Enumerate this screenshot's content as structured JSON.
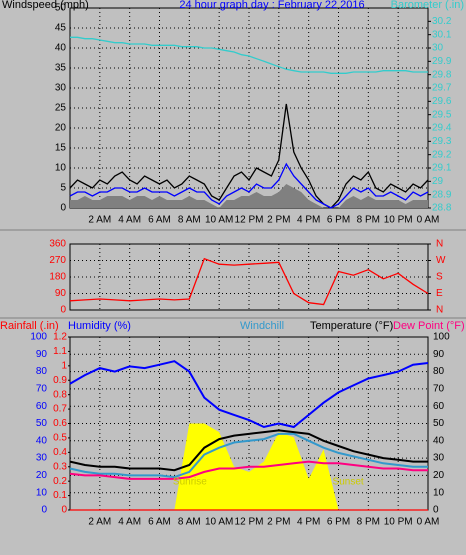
{
  "chart_data": [
    {
      "type": "line",
      "title": "24 hour graph day : February 22 2016",
      "y_label": "Windspeed (mph)",
      "y2_label": "Barometer (.in)",
      "xlim": [
        0,
        24
      ],
      "xticks": [
        {
          "value": 2,
          "label": "2 AM"
        },
        {
          "value": 4,
          "label": "4 AM"
        },
        {
          "value": 6,
          "label": "6 AM"
        },
        {
          "value": 8,
          "label": "8 AM"
        },
        {
          "value": 10,
          "label": "10 AM"
        },
        {
          "value": 12,
          "label": "12 PM"
        },
        {
          "value": 14,
          "label": "2 PM"
        },
        {
          "value": 16,
          "label": "4 PM"
        },
        {
          "value": 18,
          "label": "6 PM"
        },
        {
          "value": 20,
          "label": "8 PM"
        },
        {
          "value": 22,
          "label": "10 PM"
        },
        {
          "value": 24,
          "label": "0 AM"
        }
      ],
      "ylim": [
        0,
        50
      ],
      "yticks": [
        0,
        5,
        10,
        15,
        20,
        25,
        30,
        35,
        40,
        45,
        50
      ],
      "y_color": "#000000",
      "y2lim": [
        28.8,
        30.3
      ],
      "y2ticks": [
        28.8,
        28.9,
        29,
        29.1,
        29.2,
        29.3,
        29.4,
        29.5,
        29.6,
        29.7,
        29.8,
        29.9,
        30,
        30.1,
        30.2
      ],
      "y2_color": "#33cccc",
      "y2_side": "right",
      "grid": true,
      "x": [
        0,
        0.5,
        1,
        1.5,
        2,
        2.5,
        3,
        3.5,
        4,
        4.5,
        5,
        5.5,
        6,
        6.5,
        7,
        7.5,
        8,
        8.5,
        9,
        9.5,
        10,
        10.5,
        11,
        11.5,
        12,
        12.5,
        13,
        13.5,
        14,
        14.5,
        15,
        15.5,
        16,
        16.5,
        17,
        17.5,
        18,
        18.5,
        19,
        19.5,
        20,
        20.5,
        21,
        21.5,
        22,
        22.5,
        23,
        23.5,
        24
      ],
      "series": [
        {
          "type": "area",
          "color": "#808080",
          "values": [
            2,
            2,
            3,
            2,
            2,
            3,
            3,
            3,
            2,
            3,
            3,
            2,
            3,
            2,
            2,
            2,
            3,
            2,
            2,
            1,
            0,
            2,
            2,
            3,
            3,
            4,
            3,
            3,
            4,
            6,
            5,
            4,
            2,
            1,
            0,
            0,
            0,
            2,
            3,
            2,
            3,
            2,
            2,
            2,
            2,
            1,
            2,
            2,
            2
          ]
        },
        {
          "name": "Windspeed (mph)",
          "type": "line",
          "color": "#000000",
          "values": [
            5,
            7,
            6,
            5,
            7,
            6,
            8,
            9,
            7,
            6,
            8,
            7,
            6,
            7,
            5,
            6,
            8,
            7,
            6,
            3,
            2,
            5,
            8,
            9,
            7,
            10,
            9,
            8,
            12,
            26,
            14,
            10,
            7,
            3,
            1,
            0,
            2,
            6,
            8,
            7,
            9,
            5,
            4,
            6,
            5,
            4,
            6,
            5,
            7
          ]
        },
        {
          "type": "line",
          "color": "#0000ff",
          "values": [
            3,
            4,
            4,
            3,
            4,
            4,
            5,
            5,
            4,
            4,
            5,
            4,
            4,
            4,
            3,
            4,
            5,
            4,
            4,
            2,
            1,
            3,
            4,
            5,
            4,
            6,
            5,
            5,
            7,
            11,
            8,
            6,
            4,
            2,
            1,
            0,
            1,
            3,
            5,
            4,
            5,
            3,
            3,
            4,
            3,
            2,
            4,
            3,
            4
          ]
        },
        {
          "name": "Barometer (.in)",
          "type": "line",
          "axis": "y2",
          "color": "#33cccc",
          "values": [
            30.08,
            30.08,
            30.07,
            30.07,
            30.06,
            30.05,
            30.04,
            30.04,
            30.03,
            30.03,
            30.03,
            30.02,
            30.02,
            30.02,
            30.02,
            30.01,
            30.01,
            30.01,
            30.0,
            30.0,
            29.99,
            29.98,
            29.97,
            29.95,
            29.94,
            29.92,
            29.9,
            29.88,
            29.86,
            29.84,
            29.83,
            29.82,
            29.82,
            29.82,
            29.82,
            29.81,
            29.81,
            29.81,
            29.82,
            29.82,
            29.82,
            29.82,
            29.83,
            29.83,
            29.83,
            29.83,
            29.82,
            29.82,
            29.82
          ]
        }
      ]
    },
    {
      "type": "line",
      "xlim": [
        0,
        24
      ],
      "xticks": [
        2,
        4,
        6,
        8,
        10,
        12,
        14,
        16,
        18,
        20,
        22,
        24
      ],
      "xtick_labels": false,
      "ylim": [
        0,
        360
      ],
      "yticks": [
        0,
        90,
        180,
        270,
        360
      ],
      "y_color": "#ff0000",
      "y2lim": [
        0,
        360
      ],
      "y2ticks": [
        {
          "value": 0,
          "label": "N"
        },
        {
          "value": 90,
          "label": "E"
        },
        {
          "value": 180,
          "label": "S"
        },
        {
          "value": 270,
          "label": "W"
        },
        {
          "value": 360,
          "label": "N"
        }
      ],
      "y2_color": "#ff0000",
      "y2_side": "right",
      "grid": true,
      "x": [
        0,
        1,
        2,
        3,
        4,
        5,
        6,
        7,
        8,
        9,
        10,
        11,
        12,
        13,
        14,
        15,
        16,
        17,
        18,
        19,
        20,
        21,
        22,
        23,
        24
      ],
      "series": [
        {
          "type": "line",
          "color": "#ff0000",
          "values": [
            50,
            55,
            60,
            55,
            50,
            55,
            60,
            55,
            60,
            280,
            250,
            245,
            250,
            255,
            260,
            90,
            40,
            30,
            210,
            190,
            220,
            170,
            200,
            140,
            90
          ]
        }
      ]
    },
    {
      "type": "line",
      "headers": [
        {
          "text": "Rainfall (.in)",
          "color": "#ff0000"
        },
        {
          "text": "Humidity (%)",
          "color": "#0000ff"
        },
        {
          "text": "Windchill",
          "color": "#3399cc"
        },
        {
          "text": "Temperature (°F)",
          "color": "#000000"
        },
        {
          "text": "Dew Point (°F)",
          "color": "#ff0080"
        }
      ],
      "xlim": [
        0,
        24
      ],
      "xticks": [
        {
          "value": 2,
          "label": "2 AM"
        },
        {
          "value": 4,
          "label": "4 AM"
        },
        {
          "value": 6,
          "label": "6 AM"
        },
        {
          "value": 8,
          "label": "8 AM"
        },
        {
          "value": 10,
          "label": "10 AM"
        },
        {
          "value": 12,
          "label": "12 PM"
        },
        {
          "value": 14,
          "label": "2 PM"
        },
        {
          "value": 16,
          "label": "4 PM"
        },
        {
          "value": 18,
          "label": "6 PM"
        },
        {
          "value": 20,
          "label": "8 PM"
        },
        {
          "value": 22,
          "label": "10 PM"
        },
        {
          "value": 24,
          "label": "0 AM"
        }
      ],
      "ylim": [
        0,
        100
      ],
      "yticks": [
        0,
        10,
        20,
        30,
        40,
        50,
        60,
        70,
        80,
        90,
        100
      ],
      "y_color": "#0000ff",
      "y_right_color": "#000000",
      "y2lim": [
        0,
        1.2
      ],
      "y2ticks": [
        0,
        0.1,
        0.2,
        0.3,
        0.4,
        0.5,
        0.6,
        0.7,
        0.8,
        0.9,
        1,
        1.1,
        1.2
      ],
      "y2_color": "#ff0000",
      "y2_side": "left",
      "grid": true,
      "x": [
        0,
        1,
        2,
        3,
        4,
        5,
        6,
        7,
        8,
        9,
        10,
        11,
        12,
        13,
        14,
        15,
        16,
        17,
        18,
        19,
        20,
        21,
        22,
        23,
        24
      ],
      "series": [
        {
          "type": "area",
          "color": "#ffff00",
          "values": [
            0,
            0,
            0,
            0,
            0,
            0,
            0,
            0,
            50,
            50,
            45,
            25,
            22,
            28,
            45,
            42,
            18,
            35,
            0,
            0,
            0,
            0,
            0,
            0,
            0
          ]
        },
        {
          "name": "Rainfall (.in)",
          "type": "line",
          "axis": "y2",
          "color": "#ff0000",
          "values": [
            0,
            0,
            0,
            0,
            0,
            0,
            0,
            0,
            0,
            0,
            0,
            0,
            0,
            0,
            0,
            0,
            0,
            0,
            0,
            0,
            0,
            0,
            0,
            0,
            0
          ]
        },
        {
          "name": "Humidity (%)",
          "type": "line",
          "color": "#0000ff",
          "values": [
            73,
            78,
            82,
            80,
            83,
            82,
            84,
            86,
            80,
            65,
            58,
            55,
            52,
            48,
            50,
            48,
            55,
            62,
            68,
            72,
            76,
            78,
            80,
            84,
            85
          ]
        },
        {
          "name": "Windchill",
          "type": "line",
          "color": "#3399cc",
          "values": [
            24,
            22,
            21,
            21,
            20,
            20,
            20,
            19,
            22,
            32,
            36,
            39,
            40,
            41,
            44,
            44,
            40,
            36,
            33,
            31,
            29,
            27,
            26,
            25,
            25
          ]
        },
        {
          "name": "Temperature (°F)",
          "type": "line",
          "color": "#000000",
          "values": [
            28,
            26,
            25,
            25,
            24,
            24,
            24,
            23,
            26,
            36,
            41,
            43,
            44,
            45,
            46,
            45,
            44,
            40,
            37,
            34,
            32,
            30,
            29,
            28,
            28
          ]
        },
        {
          "name": "Dew Point (°F)",
          "type": "line",
          "color": "#ff0080",
          "values": [
            21,
            20,
            20,
            19,
            18,
            18,
            18,
            18,
            19,
            22,
            24,
            24,
            25,
            25,
            26,
            27,
            28,
            27,
            27,
            26,
            25,
            24,
            24,
            23,
            23
          ]
        }
      ],
      "annotations": [
        {
          "text": "Sunrise",
          "x": 6.9
        },
        {
          "text": "Sunset",
          "x": 17.6
        }
      ]
    }
  ]
}
